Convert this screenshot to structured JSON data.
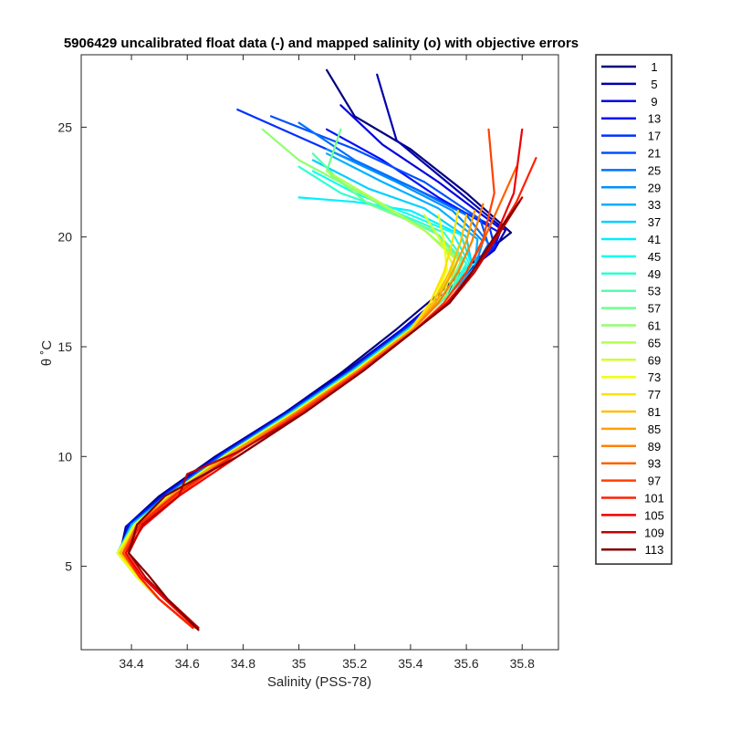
{
  "chart_data": {
    "type": "line",
    "title": "5906429 uncalibrated float data (-) and mapped salinity (o) with objective errors",
    "xlabel": "Salinity (PSS-78)",
    "ylabel": "θ ˚C",
    "xlim": [
      34.22,
      35.93
    ],
    "ylim": [
      1.2,
      28.3
    ],
    "xticks": [
      34.4,
      34.6,
      34.8,
      35,
      35.2,
      35.4,
      35.6,
      35.8
    ],
    "xtick_labels": [
      "34.4",
      "34.6",
      "34.8",
      "35",
      "35.2",
      "35.4",
      "35.6",
      "35.8"
    ],
    "yticks": [
      5,
      10,
      15,
      20,
      25
    ],
    "ytick_labels": [
      "5",
      "10",
      "15",
      "20",
      "25"
    ],
    "grid": false,
    "legend_position": "outside-right",
    "colormap": "jet",
    "series": [
      {
        "name": "1",
        "color": "#000080",
        "x": [
          34.62,
          34.5,
          34.42,
          34.36,
          34.38,
          34.5,
          34.7,
          34.95,
          35.15,
          35.35,
          35.5,
          35.6,
          35.68,
          35.76,
          35.6,
          35.4,
          35.2,
          35.1
        ],
        "y": [
          2.2,
          3.5,
          4.5,
          5.6,
          6.8,
          8.2,
          10,
          12,
          13.8,
          15.8,
          17.4,
          18.6,
          19.4,
          20.2,
          22,
          24,
          25.5,
          27.6
        ]
      },
      {
        "name": "5",
        "color": "#0000b0",
        "x": [
          34.62,
          34.5,
          34.42,
          34.36,
          34.38,
          34.52,
          34.72,
          34.95,
          35.17,
          35.37,
          35.52,
          35.62,
          35.7,
          35.74,
          35.55,
          35.35,
          35.28
        ],
        "y": [
          2.2,
          3.5,
          4.5,
          5.6,
          6.8,
          8.3,
          10.1,
          12,
          13.9,
          15.8,
          17.4,
          18.6,
          19.4,
          20.3,
          22.3,
          24.4,
          27.4
        ]
      },
      {
        "name": "9",
        "color": "#0000e0",
        "x": [
          34.62,
          34.5,
          34.42,
          34.36,
          34.39,
          34.52,
          34.72,
          34.96,
          35.18,
          35.37,
          35.52,
          35.62,
          35.7,
          35.72,
          35.5,
          35.3,
          35.15
        ],
        "y": [
          2.2,
          3.5,
          4.5,
          5.6,
          6.8,
          8.2,
          10,
          12,
          13.9,
          15.8,
          17.4,
          18.6,
          19.5,
          20.4,
          22.5,
          24.2,
          26
        ]
      },
      {
        "name": "13",
        "color": "#0010ff",
        "x": [
          34.62,
          34.5,
          34.42,
          34.36,
          34.39,
          34.52,
          34.72,
          34.96,
          35.18,
          35.38,
          35.52,
          35.62,
          35.7,
          35.72,
          35.5,
          35.3,
          35.1
        ],
        "y": [
          2.2,
          3.5,
          4.5,
          5.6,
          6.9,
          8.3,
          10.1,
          12,
          13.9,
          15.8,
          17.4,
          18.6,
          19.5,
          20.2,
          21.8,
          23.5,
          24.9
        ]
      },
      {
        "name": "17",
        "color": "#0030ff",
        "x": [
          34.62,
          34.5,
          34.42,
          34.36,
          34.4,
          34.52,
          34.72,
          34.96,
          35.18,
          35.38,
          35.53,
          35.63,
          35.7,
          35.68,
          35.4,
          35.1,
          34.78
        ],
        "y": [
          2.2,
          3.5,
          4.5,
          5.6,
          6.9,
          8.2,
          10,
          12,
          13.9,
          15.8,
          17.4,
          18.6,
          19.6,
          20.6,
          22.3,
          24,
          25.8
        ]
      },
      {
        "name": "21",
        "color": "#0050ff",
        "x": [
          34.62,
          34.5,
          34.42,
          34.36,
          34.4,
          34.53,
          34.73,
          34.97,
          35.19,
          35.39,
          35.53,
          35.63,
          35.68,
          35.65,
          35.45,
          35.2,
          34.9
        ],
        "y": [
          2.2,
          3.5,
          4.5,
          5.6,
          6.8,
          8.2,
          10,
          12,
          13.9,
          15.8,
          17.4,
          18.6,
          19.6,
          20.8,
          22.5,
          24,
          25.5
        ]
      },
      {
        "name": "25",
        "color": "#0070ff",
        "x": [
          34.62,
          34.5,
          34.42,
          34.36,
          34.4,
          34.53,
          34.73,
          34.97,
          35.19,
          35.39,
          35.54,
          35.63,
          35.68,
          35.6,
          35.4,
          35.2,
          35.0
        ],
        "y": [
          2.2,
          3.5,
          4.5,
          5.6,
          6.9,
          8.3,
          10.1,
          12,
          13.9,
          15.8,
          17.4,
          18.6,
          19.7,
          21,
          22.3,
          23.5,
          25.2
        ]
      },
      {
        "name": "29",
        "color": "#0090ff",
        "x": [
          34.62,
          34.5,
          34.42,
          34.36,
          34.4,
          34.53,
          34.73,
          34.97,
          35.19,
          35.39,
          35.54,
          35.63,
          35.66,
          35.55,
          35.35,
          35.1
        ],
        "y": [
          2.2,
          3.5,
          4.5,
          5.6,
          6.8,
          8.2,
          10,
          12,
          13.9,
          15.8,
          17.4,
          18.6,
          19.8,
          21.2,
          22.5,
          24
        ]
      },
      {
        "name": "33",
        "color": "#00b0ff",
        "x": [
          34.62,
          34.5,
          34.42,
          34.35,
          34.4,
          34.53,
          34.73,
          34.97,
          35.19,
          35.39,
          35.54,
          35.63,
          35.64,
          35.5,
          35.3,
          35.1
        ],
        "y": [
          2.2,
          3.5,
          4.5,
          5.6,
          6.9,
          8.2,
          10,
          12,
          13.9,
          15.8,
          17.4,
          18.6,
          19.9,
          21.3,
          22.5,
          23.8
        ]
      },
      {
        "name": "37",
        "color": "#00d0ff",
        "x": [
          34.62,
          34.5,
          34.42,
          34.35,
          34.4,
          34.53,
          34.73,
          34.97,
          35.19,
          35.39,
          35.54,
          35.62,
          35.6,
          35.45,
          35.25,
          35.05
        ],
        "y": [
          2.2,
          3.5,
          4.5,
          5.6,
          6.8,
          8.2,
          10,
          12,
          13.9,
          15.8,
          17.4,
          18.7,
          20,
          21.3,
          22.2,
          23.5
        ]
      },
      {
        "name": "41",
        "color": "#00f0ff",
        "x": [
          34.62,
          34.5,
          34.42,
          34.35,
          34.41,
          34.54,
          34.74,
          34.98,
          35.2,
          35.4,
          35.54,
          35.62,
          35.58,
          35.4,
          35.2,
          35.0
        ],
        "y": [
          2.2,
          3.5,
          4.5,
          5.6,
          6.9,
          8.3,
          10.1,
          12,
          13.9,
          15.8,
          17.4,
          18.7,
          20.1,
          21.2,
          21.6,
          21.8
        ]
      },
      {
        "name": "45",
        "color": "#10ffef",
        "x": [
          34.62,
          34.5,
          34.42,
          34.35,
          34.41,
          34.54,
          34.74,
          34.98,
          35.2,
          35.4,
          35.54,
          35.61,
          35.55,
          35.4,
          35.2,
          35.05
        ],
        "y": [
          2.2,
          3.5,
          4.5,
          5.6,
          6.9,
          8.2,
          10,
          12,
          13.9,
          15.8,
          17.4,
          18.8,
          20.2,
          21,
          22,
          23
        ]
      },
      {
        "name": "49",
        "color": "#30ffcf",
        "x": [
          34.62,
          34.5,
          34.42,
          34.35,
          34.41,
          34.54,
          34.74,
          34.98,
          35.2,
          35.4,
          35.54,
          35.6,
          35.52,
          35.35,
          35.15,
          35.0
        ],
        "y": [
          2.2,
          3.5,
          4.5,
          5.6,
          6.8,
          8.2,
          10,
          12,
          13.9,
          15.8,
          17.4,
          18.8,
          20.2,
          21.1,
          22,
          23.2
        ]
      },
      {
        "name": "53",
        "color": "#50ffaf",
        "x": [
          34.62,
          34.5,
          34.42,
          34.35,
          34.41,
          34.54,
          34.74,
          34.98,
          35.2,
          35.4,
          35.54,
          35.59,
          35.5,
          35.3,
          35.15,
          35.05
        ],
        "y": [
          2.2,
          3.5,
          4.5,
          5.6,
          6.9,
          8.3,
          10.1,
          12,
          13.9,
          15.8,
          17.4,
          18.9,
          20.1,
          21.4,
          22.5,
          23.8
        ]
      },
      {
        "name": "57",
        "color": "#70ff8f",
        "x": [
          34.62,
          34.5,
          34.42,
          34.35,
          34.41,
          34.54,
          34.74,
          34.98,
          35.2,
          35.4,
          35.53,
          35.58,
          35.48,
          35.25,
          35.1,
          35.15
        ],
        "y": [
          2.2,
          3.5,
          4.5,
          5.6,
          6.8,
          8.2,
          10,
          12,
          13.9,
          15.8,
          17.4,
          18.9,
          20.3,
          21.5,
          23,
          24.9
        ]
      },
      {
        "name": "61",
        "color": "#90ff6f",
        "x": [
          34.62,
          34.5,
          34.42,
          34.35,
          34.41,
          34.54,
          34.74,
          34.98,
          35.2,
          35.4,
          35.53,
          35.57,
          35.45,
          35.25,
          35.0,
          34.87
        ],
        "y": [
          2.2,
          3.5,
          4.5,
          5.6,
          6.9,
          8.2,
          10,
          12,
          13.9,
          15.8,
          17.4,
          19,
          20.3,
          21.8,
          23.5,
          24.9
        ]
      },
      {
        "name": "65",
        "color": "#b0ff4f",
        "x": [
          34.62,
          34.5,
          34.42,
          34.35,
          34.41,
          34.54,
          34.74,
          34.98,
          35.2,
          35.4,
          35.52,
          35.56,
          35.45,
          35.3,
          35.1
        ],
        "y": [
          2.2,
          3.5,
          4.5,
          5.6,
          6.8,
          8.2,
          10,
          12,
          13.9,
          15.8,
          17.4,
          19,
          20.3,
          21.5,
          23
        ]
      },
      {
        "name": "69",
        "color": "#d0ff2f",
        "x": [
          34.62,
          34.5,
          34.42,
          34.35,
          34.41,
          34.54,
          34.74,
          34.98,
          35.2,
          35.4,
          35.5,
          35.55,
          35.5,
          35.45
        ],
        "y": [
          2.2,
          3.5,
          4.5,
          5.6,
          6.9,
          8.3,
          10.1,
          12,
          13.9,
          15.8,
          17.2,
          18.8,
          20,
          21
        ]
      },
      {
        "name": "73",
        "color": "#f0ff0f",
        "x": [
          34.62,
          34.5,
          34.42,
          34.35,
          34.41,
          34.54,
          34.74,
          34.98,
          35.2,
          35.4,
          35.48,
          35.53,
          35.52,
          35.5
        ],
        "y": [
          2.2,
          3.5,
          4.5,
          5.6,
          6.8,
          8.2,
          10,
          12,
          13.9,
          15.8,
          17,
          18.5,
          19.8,
          21
        ]
      },
      {
        "name": "77",
        "color": "#ffe000",
        "x": [
          34.62,
          34.5,
          34.43,
          34.36,
          34.42,
          34.55,
          34.75,
          34.99,
          35.21,
          35.4,
          35.47,
          35.52,
          35.55,
          35.57
        ],
        "y": [
          2.2,
          3.5,
          4.5,
          5.6,
          6.9,
          8.2,
          10,
          12,
          13.9,
          15.8,
          17,
          18.4,
          19.8,
          21.2
        ]
      },
      {
        "name": "81",
        "color": "#ffc000",
        "x": [
          34.62,
          34.5,
          34.43,
          34.36,
          34.42,
          34.55,
          34.75,
          34.99,
          35.21,
          35.41,
          35.48,
          35.54,
          35.58,
          35.6
        ],
        "y": [
          2.2,
          3.5,
          4.5,
          5.6,
          6.8,
          8.2,
          10,
          12,
          13.9,
          15.8,
          17,
          18.4,
          19.8,
          21
        ]
      },
      {
        "name": "85",
        "color": "#ffa000",
        "x": [
          34.62,
          34.5,
          34.43,
          34.37,
          34.42,
          34.55,
          34.75,
          34.99,
          35.21,
          35.41,
          35.49,
          35.55,
          35.6,
          35.63
        ],
        "y": [
          2.2,
          3.5,
          4.5,
          5.6,
          6.9,
          8.3,
          10.1,
          12,
          13.9,
          15.8,
          17,
          18.4,
          19.8,
          21.2
        ]
      },
      {
        "name": "89",
        "color": "#ff8000",
        "x": [
          34.62,
          34.5,
          34.43,
          34.37,
          34.42,
          34.55,
          34.75,
          34.99,
          35.21,
          35.41,
          35.5,
          35.57,
          35.62,
          35.66
        ],
        "y": [
          2.2,
          3.5,
          4.5,
          5.6,
          6.8,
          8.2,
          10,
          12,
          13.9,
          15.8,
          17,
          18.4,
          19.8,
          21.5
        ]
      },
      {
        "name": "93",
        "color": "#ff6000",
        "x": [
          34.62,
          34.5,
          34.43,
          34.37,
          34.42,
          34.55,
          34.76,
          35.0,
          35.22,
          35.42,
          35.52,
          35.6,
          35.66,
          35.72,
          35.78
        ],
        "y": [
          2.2,
          3.5,
          4.5,
          5.6,
          6.9,
          8.2,
          10,
          12,
          13.9,
          15.8,
          17,
          18.4,
          19.8,
          21.5,
          23.2
        ]
      },
      {
        "name": "97",
        "color": "#ff4000",
        "x": [
          34.62,
          34.5,
          34.43,
          34.37,
          34.43,
          34.56,
          34.76,
          35.0,
          35.22,
          35.42,
          35.52,
          35.6,
          35.66,
          35.7,
          35.68
        ],
        "y": [
          2.2,
          3.5,
          4.5,
          5.6,
          6.8,
          8.2,
          10,
          12,
          13.9,
          15.8,
          17,
          18.4,
          19.9,
          22,
          24.9
        ]
      },
      {
        "name": "101",
        "color": "#ff2000",
        "x": [
          34.62,
          34.5,
          34.43,
          34.38,
          34.43,
          34.56,
          34.77,
          35.01,
          35.22,
          35.42,
          35.53,
          35.62,
          35.7,
          35.78,
          35.85
        ],
        "y": [
          2.2,
          3.5,
          4.5,
          5.6,
          6.9,
          8.3,
          10.1,
          12,
          13.9,
          15.8,
          17,
          18.4,
          19.9,
          21.6,
          23.6
        ]
      },
      {
        "name": "105",
        "color": "#f00000",
        "x": [
          34.63,
          34.52,
          34.44,
          34.38,
          34.44,
          34.57,
          34.78,
          35.02,
          35.23,
          35.42,
          35.53,
          35.62,
          35.7,
          35.77,
          35.8
        ],
        "y": [
          2.2,
          3.5,
          4.5,
          5.6,
          6.8,
          8.2,
          10,
          12,
          13.9,
          15.8,
          17,
          18.4,
          19.9,
          22,
          24.9
        ]
      },
      {
        "name": "109",
        "color": "#c00000",
        "x": [
          34.64,
          34.53,
          34.45,
          34.39,
          34.44,
          34.57,
          34.6,
          34.78,
          35.02,
          35.23,
          35.42,
          35.54,
          35.63,
          35.71,
          35.8
        ],
        "y": [
          2.2,
          3.5,
          4.5,
          5.6,
          6.9,
          8.2,
          9.2,
          10.2,
          12,
          13.9,
          15.8,
          17,
          18.4,
          20,
          21.8
        ]
      },
      {
        "name": "113",
        "color": "#800000",
        "x": [
          34.64,
          34.53,
          34.46,
          34.39,
          34.42,
          34.52,
          34.62,
          34.78,
          35.02,
          35.23,
          35.42,
          35.54,
          35.62,
          35.7,
          35.79
        ],
        "y": [
          2.1,
          3.5,
          4.6,
          5.6,
          6.9,
          8.2,
          8.9,
          10,
          12,
          13.9,
          15.8,
          17,
          18.4,
          20,
          21.6
        ]
      }
    ]
  }
}
